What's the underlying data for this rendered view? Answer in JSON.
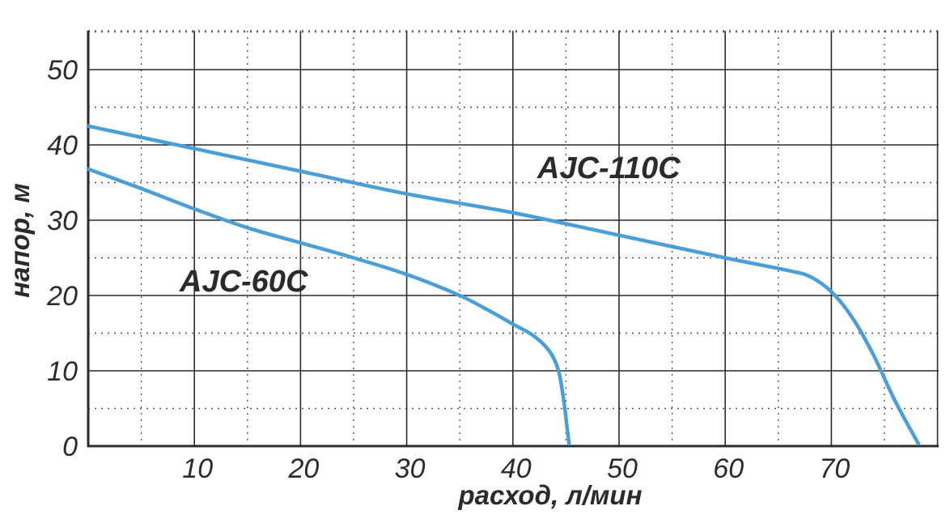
{
  "chart_data": {
    "type": "line",
    "xlabel": "расход, л/мин",
    "ylabel": "напор, м",
    "xlim": [
      0,
      80
    ],
    "ylim": [
      0,
      55
    ],
    "x_ticks": [
      "10",
      "20",
      "30",
      "40",
      "50",
      "60",
      "70"
    ],
    "y_ticks": [
      "0",
      "10",
      "20",
      "30",
      "40",
      "50"
    ],
    "grid": true,
    "line_color": "#4a9fd8",
    "series": [
      {
        "name": "AJC-110C",
        "points": [
          [
            0,
            42.5
          ],
          [
            10,
            39.5
          ],
          [
            20,
            36.5
          ],
          [
            30,
            33.5
          ],
          [
            40,
            31
          ],
          [
            50,
            28
          ],
          [
            60,
            25
          ],
          [
            66,
            23.3
          ],
          [
            68,
            22.5
          ],
          [
            70,
            20.5
          ],
          [
            72,
            17
          ],
          [
            74,
            12
          ],
          [
            76,
            6
          ],
          [
            78.2,
            0.3
          ]
        ]
      },
      {
        "name": "AJC-60C",
        "points": [
          [
            0,
            36.8
          ],
          [
            5,
            34.2
          ],
          [
            10,
            31.5
          ],
          [
            15,
            29
          ],
          [
            20,
            27
          ],
          [
            25,
            25
          ],
          [
            30,
            22.8
          ],
          [
            35,
            20
          ],
          [
            38,
            17.8
          ],
          [
            40,
            16.2
          ],
          [
            42,
            14.6
          ],
          [
            43.5,
            12.5
          ],
          [
            44.3,
            10
          ],
          [
            44.8,
            6
          ],
          [
            45.1,
            2.5
          ],
          [
            45.3,
            0.3
          ]
        ]
      }
    ]
  }
}
